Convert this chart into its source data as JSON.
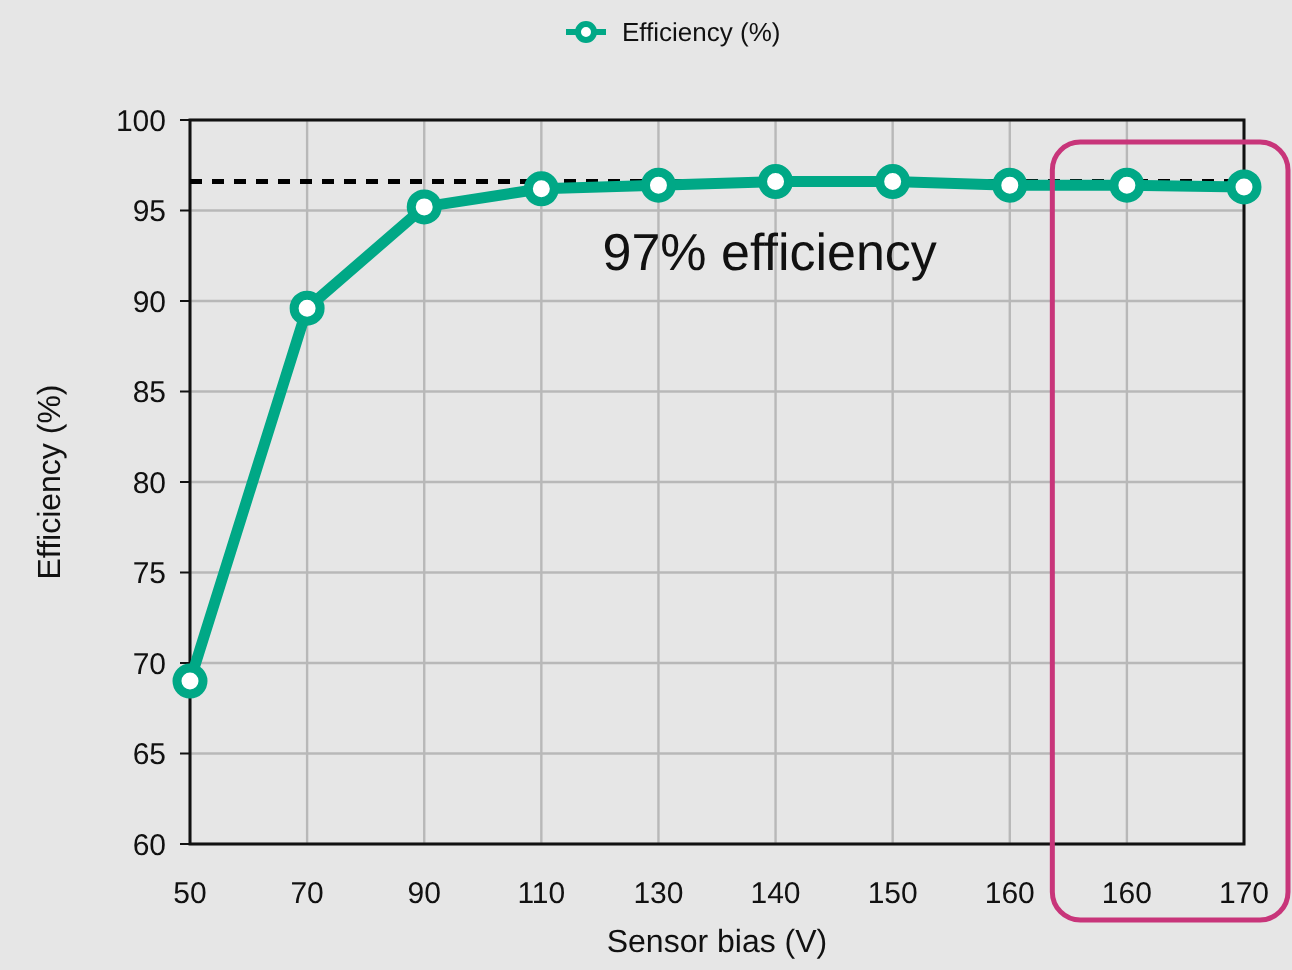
{
  "chart_data": {
    "type": "line",
    "xlabel": "Sensor bias (V)",
    "ylabel": "Efficiency (%)",
    "categories": [
      "50",
      "70",
      "90",
      "110",
      "130",
      "140",
      "150",
      "160",
      "160",
      "170"
    ],
    "series": [
      {
        "name": "Efficiency (%)",
        "color": "#00a886",
        "values": [
          69,
          89.6,
          95.2,
          96.2,
          96.4,
          96.6,
          96.6,
          96.4,
          96.4,
          96.3
        ]
      }
    ],
    "ylim": [
      60,
      100
    ],
    "yticks": [
      60,
      65,
      70,
      75,
      80,
      85,
      90,
      95,
      100
    ],
    "ref_lines": [
      {
        "axis": "y",
        "value": 96.6,
        "label": "97% efficiency",
        "color": "#000000",
        "line_style": "dashed"
      }
    ],
    "grid": true,
    "legend": "top",
    "marker": "circle",
    "line_style": "solid"
  }
}
